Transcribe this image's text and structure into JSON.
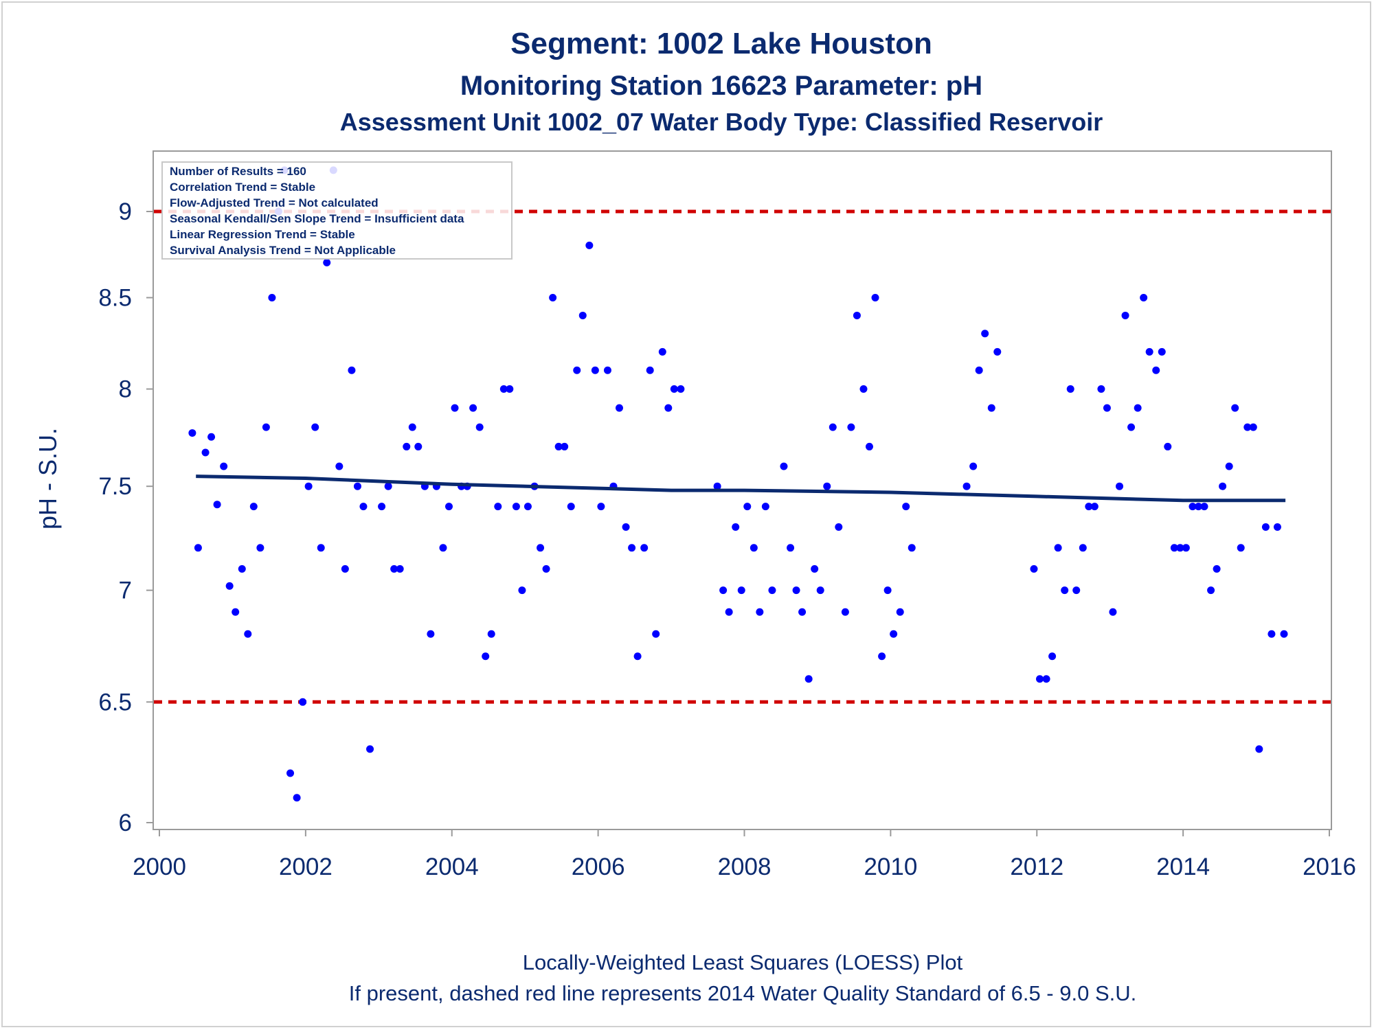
{
  "titles": {
    "line1": "Segment: 1002  Lake Houston",
    "line2": "Monitoring Station 16623 Parameter: pH",
    "line3": "Assessment Unit 1002_07   Water Body Type: Classified Reservoir"
  },
  "legend": {
    "lines": [
      "Number of Results = 160",
      "Correlation Trend = Stable",
      "Flow-Adjusted Trend = Not calculated",
      "Seasonal Kendall/Sen Slope Trend = Insufficient data",
      "Linear Regression Trend = Stable",
      "Survival Analysis Trend = Not Applicable"
    ]
  },
  "footer": {
    "line1": "Locally-Weighted Least Squares (LOESS) Plot",
    "line2": "If present, dashed red line represents 2014 Water Quality Standard of 6.5 - 9.0 S.U."
  },
  "colors": {
    "points": "#0000ff",
    "loess": "#0b2a6f",
    "standard": "#d00000",
    "text": "#0b2a6f",
    "axis": "#9a9a9a"
  },
  "chart_data": {
    "type": "scatter",
    "ylabel": "pH - S.U.",
    "xlabel": "",
    "xlim": [
      2000,
      2016
    ],
    "ylim": [
      6,
      9.3
    ],
    "y_scale": "log",
    "xticks": [
      "2000",
      "2002",
      "2004",
      "2006",
      "2008",
      "2010",
      "2012",
      "2014",
      "2016"
    ],
    "yticks": [
      "6",
      "6.5",
      "7",
      "7.5",
      "8",
      "8.5",
      "9"
    ],
    "standard_lines": [
      6.5,
      9.0
    ],
    "loess": {
      "x": [
        2000.5,
        2002.0,
        2004.0,
        2006.0,
        2007.0,
        2008.0,
        2010.0,
        2012.0,
        2014.0,
        2015.4
      ],
      "y": [
        7.55,
        7.54,
        7.51,
        7.49,
        7.48,
        7.48,
        7.47,
        7.45,
        7.43,
        7.43
      ]
    },
    "points": [
      {
        "x": 2000.45,
        "y": 7.77
      },
      {
        "x": 2000.53,
        "y": 7.2
      },
      {
        "x": 2000.63,
        "y": 7.67
      },
      {
        "x": 2000.71,
        "y": 7.75
      },
      {
        "x": 2000.79,
        "y": 7.41
      },
      {
        "x": 2000.88,
        "y": 7.6
      },
      {
        "x": 2000.96,
        "y": 7.02
      },
      {
        "x": 2001.04,
        "y": 6.9
      },
      {
        "x": 2001.13,
        "y": 7.1
      },
      {
        "x": 2001.21,
        "y": 6.8
      },
      {
        "x": 2001.29,
        "y": 7.4
      },
      {
        "x": 2001.38,
        "y": 7.2
      },
      {
        "x": 2001.46,
        "y": 7.8
      },
      {
        "x": 2001.54,
        "y": 8.5
      },
      {
        "x": 2001.63,
        "y": 9.0
      },
      {
        "x": 2001.71,
        "y": 9.25
      },
      {
        "x": 2001.79,
        "y": 6.2
      },
      {
        "x": 2001.88,
        "y": 6.1
      },
      {
        "x": 2001.96,
        "y": 6.5
      },
      {
        "x": 2002.04,
        "y": 7.5
      },
      {
        "x": 2002.13,
        "y": 7.8
      },
      {
        "x": 2002.21,
        "y": 7.2
      },
      {
        "x": 2002.29,
        "y": 8.7
      },
      {
        "x": 2002.38,
        "y": 9.25
      },
      {
        "x": 2002.46,
        "y": 7.6
      },
      {
        "x": 2002.54,
        "y": 7.1
      },
      {
        "x": 2002.63,
        "y": 8.1
      },
      {
        "x": 2002.71,
        "y": 7.5
      },
      {
        "x": 2002.79,
        "y": 7.4
      },
      {
        "x": 2002.88,
        "y": 6.3
      },
      {
        "x": 2003.04,
        "y": 7.4
      },
      {
        "x": 2003.13,
        "y": 7.5
      },
      {
        "x": 2003.21,
        "y": 7.1
      },
      {
        "x": 2003.29,
        "y": 7.1
      },
      {
        "x": 2003.38,
        "y": 7.7
      },
      {
        "x": 2003.46,
        "y": 7.8
      },
      {
        "x": 2003.54,
        "y": 7.7
      },
      {
        "x": 2003.63,
        "y": 7.5
      },
      {
        "x": 2003.71,
        "y": 6.8
      },
      {
        "x": 2003.79,
        "y": 7.5
      },
      {
        "x": 2003.88,
        "y": 7.2
      },
      {
        "x": 2003.96,
        "y": 7.4
      },
      {
        "x": 2004.04,
        "y": 7.9
      },
      {
        "x": 2004.13,
        "y": 7.5
      },
      {
        "x": 2004.21,
        "y": 7.5
      },
      {
        "x": 2004.29,
        "y": 7.9
      },
      {
        "x": 2004.38,
        "y": 7.8
      },
      {
        "x": 2004.46,
        "y": 6.7
      },
      {
        "x": 2004.54,
        "y": 6.8
      },
      {
        "x": 2004.63,
        "y": 7.4
      },
      {
        "x": 2004.71,
        "y": 8.0
      },
      {
        "x": 2004.79,
        "y": 8.0
      },
      {
        "x": 2004.88,
        "y": 7.4
      },
      {
        "x": 2004.96,
        "y": 7.0
      },
      {
        "x": 2005.04,
        "y": 7.4
      },
      {
        "x": 2005.13,
        "y": 7.5
      },
      {
        "x": 2005.21,
        "y": 7.2
      },
      {
        "x": 2005.29,
        "y": 7.1
      },
      {
        "x": 2005.38,
        "y": 8.5
      },
      {
        "x": 2005.46,
        "y": 7.7
      },
      {
        "x": 2005.54,
        "y": 7.7
      },
      {
        "x": 2005.63,
        "y": 7.4
      },
      {
        "x": 2005.71,
        "y": 8.1
      },
      {
        "x": 2005.79,
        "y": 8.4
      },
      {
        "x": 2005.88,
        "y": 8.8
      },
      {
        "x": 2005.96,
        "y": 8.1
      },
      {
        "x": 2006.04,
        "y": 7.4
      },
      {
        "x": 2006.13,
        "y": 8.1
      },
      {
        "x": 2006.21,
        "y": 7.5
      },
      {
        "x": 2006.29,
        "y": 7.9
      },
      {
        "x": 2006.38,
        "y": 7.3
      },
      {
        "x": 2006.46,
        "y": 7.2
      },
      {
        "x": 2006.54,
        "y": 6.7
      },
      {
        "x": 2006.63,
        "y": 7.2
      },
      {
        "x": 2006.71,
        "y": 8.1
      },
      {
        "x": 2006.79,
        "y": 6.8
      },
      {
        "x": 2006.88,
        "y": 8.2
      },
      {
        "x": 2006.96,
        "y": 7.9
      },
      {
        "x": 2007.04,
        "y": 8.0
      },
      {
        "x": 2007.13,
        "y": 8.0
      },
      {
        "x": 2007.63,
        "y": 7.5
      },
      {
        "x": 2007.71,
        "y": 7.0
      },
      {
        "x": 2007.79,
        "y": 6.9
      },
      {
        "x": 2007.88,
        "y": 7.3
      },
      {
        "x": 2007.96,
        "y": 7.0
      },
      {
        "x": 2008.04,
        "y": 7.4
      },
      {
        "x": 2008.13,
        "y": 7.2
      },
      {
        "x": 2008.21,
        "y": 6.9
      },
      {
        "x": 2008.29,
        "y": 7.4
      },
      {
        "x": 2008.38,
        "y": 7.0
      },
      {
        "x": 2008.54,
        "y": 7.6
      },
      {
        "x": 2008.63,
        "y": 7.2
      },
      {
        "x": 2008.71,
        "y": 7.0
      },
      {
        "x": 2008.79,
        "y": 6.9
      },
      {
        "x": 2008.88,
        "y": 6.6
      },
      {
        "x": 2008.96,
        "y": 7.1
      },
      {
        "x": 2009.04,
        "y": 7.0
      },
      {
        "x": 2009.13,
        "y": 7.5
      },
      {
        "x": 2009.21,
        "y": 7.8
      },
      {
        "x": 2009.29,
        "y": 7.3
      },
      {
        "x": 2009.38,
        "y": 6.9
      },
      {
        "x": 2009.46,
        "y": 7.8
      },
      {
        "x": 2009.54,
        "y": 8.4
      },
      {
        "x": 2009.63,
        "y": 8.0
      },
      {
        "x": 2009.71,
        "y": 7.7
      },
      {
        "x": 2009.79,
        "y": 8.5
      },
      {
        "x": 2009.88,
        "y": 6.7
      },
      {
        "x": 2009.96,
        "y": 7.0
      },
      {
        "x": 2010.04,
        "y": 6.8
      },
      {
        "x": 2010.13,
        "y": 6.9
      },
      {
        "x": 2010.21,
        "y": 7.4
      },
      {
        "x": 2010.29,
        "y": 7.2
      },
      {
        "x": 2011.04,
        "y": 7.5
      },
      {
        "x": 2011.13,
        "y": 7.6
      },
      {
        "x": 2011.21,
        "y": 8.1
      },
      {
        "x": 2011.29,
        "y": 8.3
      },
      {
        "x": 2011.38,
        "y": 7.9
      },
      {
        "x": 2011.46,
        "y": 8.2
      },
      {
        "x": 2011.96,
        "y": 7.1
      },
      {
        "x": 2012.04,
        "y": 6.6
      },
      {
        "x": 2012.13,
        "y": 6.6
      },
      {
        "x": 2012.21,
        "y": 6.7
      },
      {
        "x": 2012.29,
        "y": 7.2
      },
      {
        "x": 2012.38,
        "y": 7.0
      },
      {
        "x": 2012.46,
        "y": 8.0
      },
      {
        "x": 2012.54,
        "y": 7.0
      },
      {
        "x": 2012.63,
        "y": 7.2
      },
      {
        "x": 2012.71,
        "y": 7.4
      },
      {
        "x": 2012.79,
        "y": 7.4
      },
      {
        "x": 2012.88,
        "y": 8.0
      },
      {
        "x": 2012.96,
        "y": 7.9
      },
      {
        "x": 2013.04,
        "y": 6.9
      },
      {
        "x": 2013.13,
        "y": 7.5
      },
      {
        "x": 2013.21,
        "y": 8.4
      },
      {
        "x": 2013.29,
        "y": 7.8
      },
      {
        "x": 2013.38,
        "y": 7.9
      },
      {
        "x": 2013.46,
        "y": 8.5
      },
      {
        "x": 2013.54,
        "y": 8.2
      },
      {
        "x": 2013.63,
        "y": 8.1
      },
      {
        "x": 2013.71,
        "y": 8.2
      },
      {
        "x": 2013.79,
        "y": 7.7
      },
      {
        "x": 2013.88,
        "y": 7.2
      },
      {
        "x": 2013.96,
        "y": 7.2
      },
      {
        "x": 2014.04,
        "y": 7.2
      },
      {
        "x": 2014.13,
        "y": 7.4
      },
      {
        "x": 2014.21,
        "y": 7.4
      },
      {
        "x": 2014.29,
        "y": 7.4
      },
      {
        "x": 2014.38,
        "y": 7.0
      },
      {
        "x": 2014.46,
        "y": 7.1
      },
      {
        "x": 2014.54,
        "y": 7.5
      },
      {
        "x": 2014.63,
        "y": 7.6
      },
      {
        "x": 2014.71,
        "y": 7.9
      },
      {
        "x": 2014.79,
        "y": 7.2
      },
      {
        "x": 2014.88,
        "y": 7.8
      },
      {
        "x": 2014.96,
        "y": 7.8
      },
      {
        "x": 2015.04,
        "y": 6.3
      },
      {
        "x": 2015.13,
        "y": 7.3
      },
      {
        "x": 2015.21,
        "y": 6.8
      },
      {
        "x": 2015.29,
        "y": 7.3
      },
      {
        "x": 2015.38,
        "y": 6.8
      }
    ]
  }
}
